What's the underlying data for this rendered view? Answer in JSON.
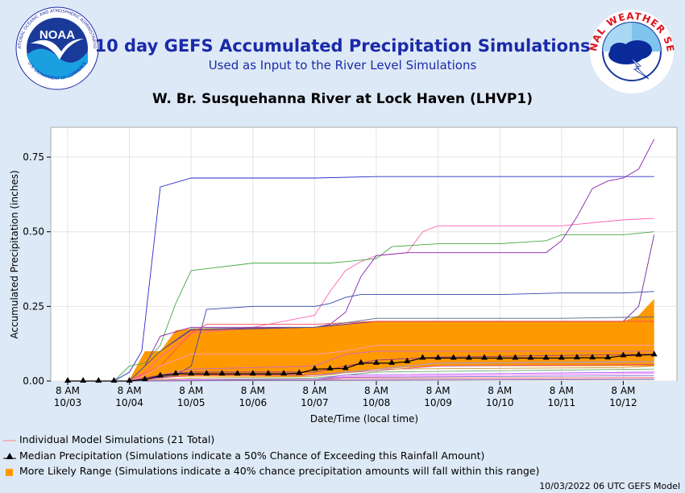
{
  "header": {
    "title": "10 day GEFS Accumulated Precipitation Simulations",
    "subtitle": "Used as Input to the River Level Simulations",
    "station": "W. Br. Susquehanna River at Lock Haven (LHVP1)"
  },
  "logos": {
    "noaa_text": "NOAA",
    "noaa_ring_top": "NATIONAL OCEANIC AND ATMOSPHERIC ADMINISTRATION",
    "noaa_ring_bottom": "U.S. DEPARTMENT OF COMMERCE",
    "nws_ring": "NATIONAL WEATHER SERVICE"
  },
  "legend": {
    "individual": "Individual Model Simulations (21 Total)",
    "median": "Median Precipitation (Simulations indicate a 50% Chance of Exceeding this Rainfall Amount)",
    "range": "More Likely Range (Simulations indicate a 40% chance precipitation amounts will fall within this range)"
  },
  "footer": "10/03/2022 06 UTC GEFS Model",
  "colors": {
    "median": "#000000",
    "range": "#ff9900",
    "individual": "#ff8080",
    "title": "#1a2aa8"
  },
  "chart_data": {
    "type": "line",
    "xlabel": "Date/Time (local time)",
    "ylabel": "Accumulated Precipitation (inches)",
    "xlim": [
      0,
      10
    ],
    "ylim": [
      0,
      0.85
    ],
    "yticks": [
      0.0,
      0.25,
      0.5,
      0.75
    ],
    "ytick_labels": [
      "0.00",
      "0.25",
      "0.50",
      "0.75"
    ],
    "xticks": [
      {
        "x": 0,
        "line1": "8 AM",
        "line2": "10/03"
      },
      {
        "x": 1,
        "line1": "8 AM",
        "line2": "10/04"
      },
      {
        "x": 2,
        "line1": "8 AM",
        "line2": "10/05"
      },
      {
        "x": 3,
        "line1": "8 AM",
        "line2": "10/06"
      },
      {
        "x": 4,
        "line1": "8 AM",
        "line2": "10/07"
      },
      {
        "x": 5,
        "line1": "8 AM",
        "line2": "10/08"
      },
      {
        "x": 6,
        "line1": "8 AM",
        "line2": "10/09"
      },
      {
        "x": 7,
        "line1": "8 AM",
        "line2": "10/10"
      },
      {
        "x": 8,
        "line1": "8 AM",
        "line2": "10/11"
      },
      {
        "x": 9,
        "line1": "8 AM",
        "line2": "10/12"
      }
    ],
    "median": {
      "x": [
        0.0,
        0.25,
        0.5,
        0.75,
        1.0,
        1.25,
        1.5,
        1.75,
        2.0,
        2.25,
        2.5,
        2.75,
        3.0,
        3.25,
        3.5,
        3.75,
        4.0,
        4.25,
        4.5,
        4.75,
        5.0,
        5.25,
        5.5,
        5.75,
        6.0,
        6.25,
        6.5,
        6.75,
        7.0,
        7.25,
        7.5,
        7.75,
        8.0,
        8.25,
        8.5,
        8.75,
        9.0,
        9.25,
        9.5
      ],
      "y": [
        0,
        0,
        0,
        0,
        0,
        0.005,
        0.018,
        0.024,
        0.024,
        0.024,
        0.024,
        0.024,
        0.024,
        0.024,
        0.024,
        0.026,
        0.04,
        0.041,
        0.042,
        0.06,
        0.06,
        0.06,
        0.065,
        0.077,
        0.077,
        0.077,
        0.077,
        0.077,
        0.077,
        0.077,
        0.077,
        0.077,
        0.077,
        0.078,
        0.078,
        0.078,
        0.085,
        0.087,
        0.088
      ]
    },
    "range": {
      "x": [
        1.0,
        1.25,
        1.5,
        1.75,
        2.0,
        3.0,
        3.75,
        4.0,
        4.5,
        5.0,
        6.0,
        7.0,
        8.0,
        8.5,
        8.75,
        9.0,
        9.25,
        9.5
      ],
      "upper": [
        0.005,
        0.1,
        0.1,
        0.17,
        0.175,
        0.178,
        0.179,
        0.18,
        0.192,
        0.2,
        0.2,
        0.2,
        0.2,
        0.2,
        0.2,
        0.2,
        0.22,
        0.275
      ],
      "lower": [
        0,
        0.005,
        0.01,
        0.013,
        0.015,
        0.015,
        0.015,
        0.02,
        0.03,
        0.04,
        0.05,
        0.05,
        0.05,
        0.05,
        0.05,
        0.05,
        0.05,
        0.05
      ]
    },
    "individual_series": [
      {
        "color": "#2a2acc",
        "x": [
          0,
          0.75,
          1.0,
          1.2,
          1.5,
          2.0,
          4.0,
          5.0,
          9.5
        ],
        "y": [
          0,
          0,
          0.03,
          0.1,
          0.65,
          0.68,
          0.68,
          0.685,
          0.685
        ]
      },
      {
        "color": "#ff5fb4",
        "x": [
          0,
          1.0,
          1.25,
          1.5,
          2.0,
          3.0,
          4.0,
          4.25,
          4.5,
          4.75,
          5.0,
          5.5,
          5.75,
          6.0,
          7.0,
          8.0,
          9.0,
          9.5
        ],
        "y": [
          0,
          0,
          0.03,
          0.08,
          0.16,
          0.18,
          0.22,
          0.3,
          0.37,
          0.4,
          0.42,
          0.43,
          0.5,
          0.52,
          0.52,
          0.52,
          0.54,
          0.545
        ]
      },
      {
        "color": "#44aa44",
        "x": [
          0,
          0.75,
          1.0,
          1.25,
          1.5,
          1.75,
          2.0,
          3.0,
          4.0,
          4.25,
          4.5,
          5.0,
          5.25,
          6.0,
          7.0,
          7.75,
          8.0,
          9.0,
          9.5
        ],
        "y": [
          0,
          0,
          0.05,
          0.06,
          0.12,
          0.26,
          0.37,
          0.395,
          0.395,
          0.395,
          0.4,
          0.41,
          0.45,
          0.46,
          0.46,
          0.47,
          0.49,
          0.49,
          0.5
        ]
      },
      {
        "color": "#8822aa",
        "x": [
          0,
          1.0,
          1.25,
          1.5,
          2.0,
          4.0,
          4.25,
          4.5,
          4.75,
          5.0,
          5.5,
          6.0,
          7.0,
          7.75,
          8.0,
          8.25,
          8.5,
          8.75,
          9.0,
          9.25,
          9.5
        ],
        "y": [
          0,
          0,
          0.05,
          0.15,
          0.18,
          0.18,
          0.19,
          0.23,
          0.35,
          0.42,
          0.43,
          0.43,
          0.43,
          0.43,
          0.47,
          0.55,
          0.645,
          0.67,
          0.68,
          0.71,
          0.81
        ]
      },
      {
        "color": "#3344aa",
        "x": [
          0,
          1.0,
          1.75,
          2.0,
          2.25,
          3.0,
          4.0,
          4.25,
          4.5,
          4.75,
          5.0,
          6.0,
          7.0,
          8.0,
          9.0,
          9.5
        ],
        "y": [
          0,
          0,
          0.02,
          0.05,
          0.24,
          0.25,
          0.25,
          0.26,
          0.28,
          0.29,
          0.29,
          0.29,
          0.29,
          0.295,
          0.295,
          0.3
        ]
      },
      {
        "color": "#6a2a9a",
        "x": [
          0,
          1.0,
          1.5,
          2.0,
          4.0,
          5.0,
          8.0,
          9.0,
          9.25,
          9.5
        ],
        "y": [
          0,
          0,
          0.1,
          0.17,
          0.18,
          0.2,
          0.2,
          0.2,
          0.25,
          0.49
        ]
      },
      {
        "color": "#ff5050",
        "x": [
          0,
          1.0,
          1.5,
          2.0,
          2.25,
          4.0,
          5.0,
          6.0,
          8.0,
          9.5
        ],
        "y": [
          0,
          0,
          0.05,
          0.16,
          0.19,
          0.19,
          0.2,
          0.2,
          0.2,
          0.2
        ]
      },
      {
        "color": "#556688",
        "x": [
          0,
          1.0,
          1.5,
          2.0,
          4.0,
          5.0,
          6.0,
          8.0,
          9.5
        ],
        "y": [
          0,
          0,
          0.1,
          0.175,
          0.18,
          0.21,
          0.21,
          0.21,
          0.215
        ]
      },
      {
        "color": "#ff9ac0",
        "x": [
          0,
          1.0,
          1.25,
          1.5,
          2.0,
          4.0,
          4.5,
          5.0,
          6.0,
          9.5
        ],
        "y": [
          0,
          0,
          0.02,
          0.05,
          0.09,
          0.09,
          0.1,
          0.12,
          0.12,
          0.12
        ]
      },
      {
        "color": "#cc66cc",
        "x": [
          0,
          1.0,
          1.5,
          2.0,
          4.0,
          4.5,
          5.0,
          9.5
        ],
        "y": [
          0,
          0,
          0.02,
          0.04,
          0.05,
          0.09,
          0.1,
          0.1
        ]
      },
      {
        "color": "#993399",
        "x": [
          0,
          1.0,
          1.5,
          2.0,
          4.0,
          5.0,
          6.0,
          9.5
        ],
        "y": [
          0,
          0,
          0.02,
          0.03,
          0.03,
          0.07,
          0.08,
          0.09
        ]
      },
      {
        "color": "#9999ff",
        "x": [
          0,
          1.0,
          1.5,
          2.0,
          4.0,
          5.0,
          6.0,
          9.5
        ],
        "y": [
          0,
          0,
          0.01,
          0.02,
          0.02,
          0.04,
          0.06,
          0.065
        ]
      },
      {
        "color": "#dd4488",
        "x": [
          0,
          1.0,
          1.5,
          2.0,
          4.0,
          5.0,
          6.0,
          9.5
        ],
        "y": [
          0,
          0,
          0.01,
          0.02,
          0.02,
          0.035,
          0.05,
          0.055
        ]
      },
      {
        "color": "#cc9933",
        "x": [
          0,
          1.0,
          2.0,
          4.0,
          5.0,
          9.0,
          9.5
        ],
        "y": [
          0,
          0,
          0.01,
          0.015,
          0.04,
          0.045,
          0.05
        ]
      },
      {
        "color": "#66aa66",
        "x": [
          0,
          1.0,
          2.0,
          4.0,
          5.0,
          9.5
        ],
        "y": [
          0,
          0,
          0.005,
          0.01,
          0.03,
          0.04
        ]
      },
      {
        "color": "#aa55ff",
        "x": [
          0,
          1.0,
          2.0,
          4.0,
          4.5,
          9.5
        ],
        "y": [
          0,
          0,
          0.005,
          0.005,
          0.02,
          0.03
        ]
      },
      {
        "color": "#ff66ff",
        "x": [
          0,
          1.0,
          2.0,
          4.0,
          4.5,
          9.5
        ],
        "y": [
          0,
          0,
          0.005,
          0.005,
          0.015,
          0.025
        ]
      },
      {
        "color": "#7777cc",
        "x": [
          0,
          1.0,
          2.0,
          4.0,
          4.5,
          9.5
        ],
        "y": [
          0,
          0,
          0.003,
          0.005,
          0.012,
          0.018
        ]
      },
      {
        "color": "#ff8080",
        "x": [
          0,
          1.0,
          4.0,
          4.5,
          9.5
        ],
        "y": [
          0,
          0,
          0.003,
          0.01,
          0.012
        ]
      },
      {
        "color": "#bb66bb",
        "x": [
          0,
          1.0,
          4.5,
          9.5
        ],
        "y": [
          0,
          0,
          0.005,
          0.008
        ]
      },
      {
        "color": "#8888aa",
        "x": [
          0,
          1.0,
          9.5
        ],
        "y": [
          0,
          0,
          0.005
        ]
      }
    ]
  }
}
